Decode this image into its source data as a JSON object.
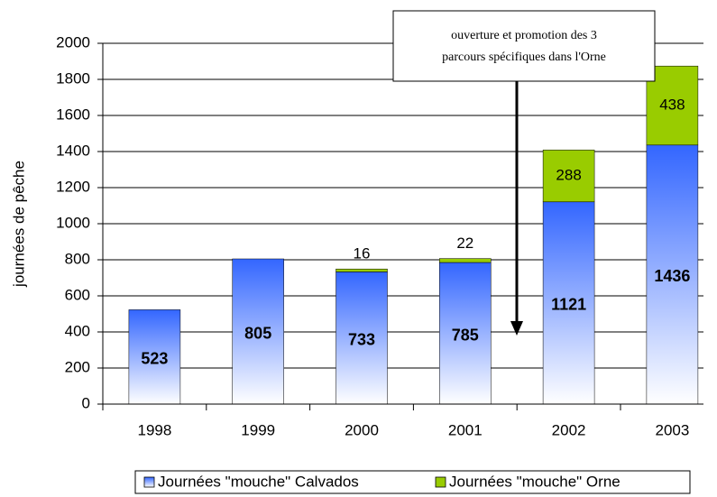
{
  "chart_data": {
    "type": "bar",
    "stacked": true,
    "y_label": "journées de pêche",
    "categories": [
      "1998",
      "1999",
      "2000",
      "2001",
      "2002",
      "2003"
    ],
    "series": [
      {
        "name": "Journées \"mouche\" Calvados",
        "color": "#3366ff",
        "values": [
          523,
          805,
          733,
          785,
          1121,
          1436
        ]
      },
      {
        "name": "Journées \"mouche\" Orne",
        "color": "#99cc00",
        "values": [
          null,
          null,
          16,
          22,
          288,
          438
        ]
      }
    ],
    "ylim": [
      0,
      2000
    ],
    "yticks": [
      0,
      200,
      400,
      600,
      800,
      1000,
      1200,
      1400,
      1600,
      1800,
      2000
    ],
    "grid": true,
    "legend": "bottom",
    "annotation": [
      "ouverture et promotion  des 3",
      "parcours spécifiques dans l'Orne"
    ]
  }
}
